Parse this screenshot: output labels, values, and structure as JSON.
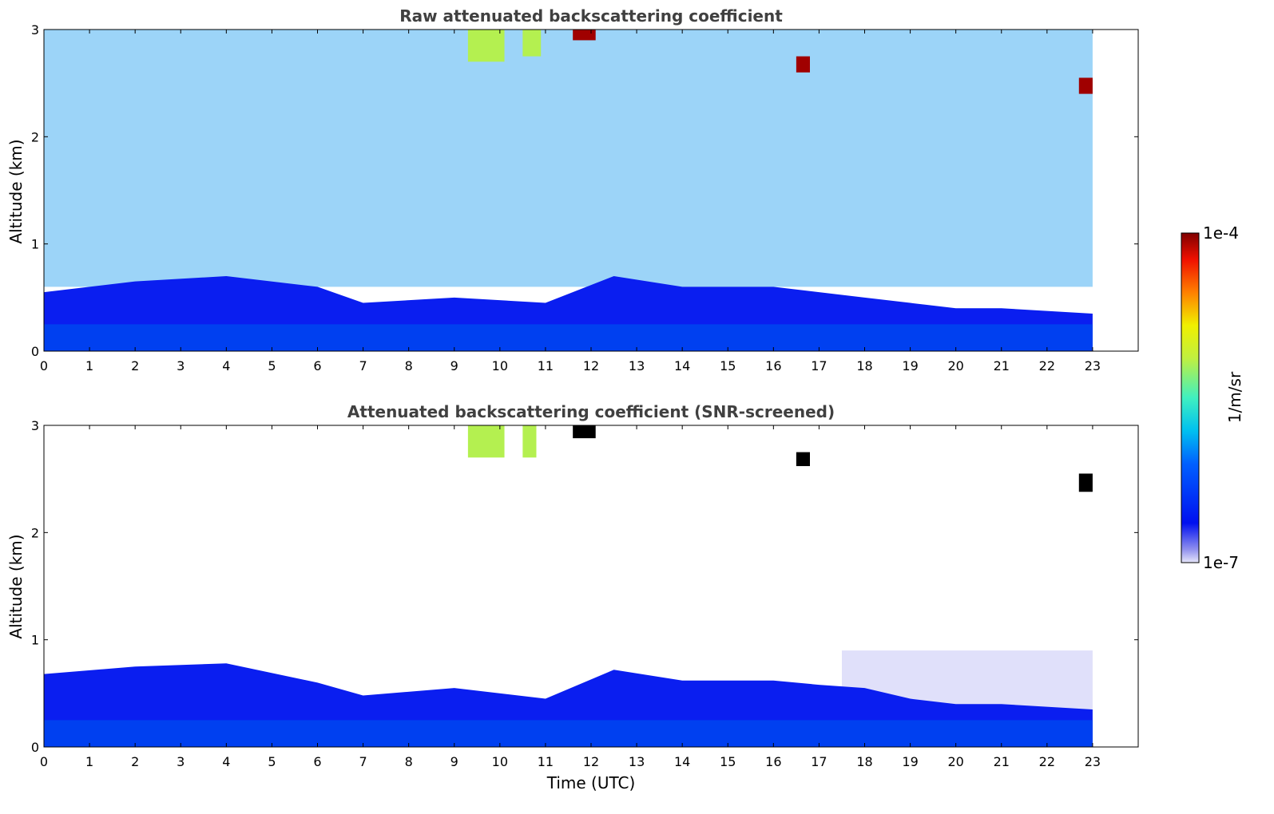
{
  "chart_data": [
    {
      "type": "heatmap",
      "title": "Raw attenuated backscattering coefficient",
      "xlabel": "",
      "ylabel": "Altitude (km)",
      "xlim": [
        0,
        24
      ],
      "ylim": [
        0,
        3
      ],
      "x_ticks": [
        "0",
        "1",
        "2",
        "3",
        "4",
        "5",
        "6",
        "7",
        "8",
        "9",
        "10",
        "11",
        "12",
        "13",
        "14",
        "15",
        "16",
        "17",
        "18",
        "19",
        "20",
        "21",
        "22",
        "23"
      ],
      "y_ticks": [
        "0",
        "1",
        "2",
        "3"
      ],
      "data_time_range_utc": [
        0,
        23
      ],
      "boundary_layer_top_km": [
        {
          "t": 0,
          "z": 0.55
        },
        {
          "t": 2,
          "z": 0.65
        },
        {
          "t": 4,
          "z": 0.7
        },
        {
          "t": 6,
          "z": 0.6
        },
        {
          "t": 7,
          "z": 0.45
        },
        {
          "t": 9,
          "z": 0.5
        },
        {
          "t": 11,
          "z": 0.45
        },
        {
          "t": 12.5,
          "z": 0.7
        },
        {
          "t": 14,
          "z": 0.6
        },
        {
          "t": 16,
          "z": 0.6
        },
        {
          "t": 17,
          "z": 0.55
        },
        {
          "t": 18,
          "z": 0.5
        },
        {
          "t": 19,
          "z": 0.45
        },
        {
          "t": 20,
          "z": 0.4
        },
        {
          "t": 21,
          "z": 0.4
        },
        {
          "t": 23,
          "z": 0.35
        }
      ],
      "features": [
        {
          "t0": 9.3,
          "t1": 10.1,
          "z0": 2.7,
          "z1": 3.0,
          "level": "high-mid"
        },
        {
          "t0": 10.5,
          "t1": 10.9,
          "z0": 2.75,
          "z1": 3.0,
          "level": "high-mid"
        },
        {
          "t0": 11.6,
          "t1": 12.1,
          "z0": 2.9,
          "z1": 3.0,
          "level": "max"
        },
        {
          "t0": 16.5,
          "t1": 16.8,
          "z0": 2.6,
          "z1": 2.75,
          "level": "max"
        },
        {
          "t0": 22.7,
          "t1": 23.0,
          "z0": 2.4,
          "z1": 2.55,
          "level": "max"
        }
      ]
    },
    {
      "type": "heatmap",
      "title": "Attenuated backscattering coefficient (SNR-screened)",
      "xlabel": "Time (UTC)",
      "ylabel": "Altitude (km)",
      "xlim": [
        0,
        24
      ],
      "ylim": [
        0,
        3
      ],
      "x_ticks": [
        "0",
        "1",
        "2",
        "3",
        "4",
        "5",
        "6",
        "7",
        "8",
        "9",
        "10",
        "11",
        "12",
        "13",
        "14",
        "15",
        "16",
        "17",
        "18",
        "19",
        "20",
        "21",
        "22",
        "23"
      ],
      "y_ticks": [
        "0",
        "1",
        "2",
        "3"
      ],
      "data_time_range_utc": [
        0,
        23
      ],
      "boundary_layer_top_km": [
        {
          "t": 0,
          "z": 0.68
        },
        {
          "t": 2,
          "z": 0.75
        },
        {
          "t": 4,
          "z": 0.78
        },
        {
          "t": 6,
          "z": 0.6
        },
        {
          "t": 7,
          "z": 0.48
        },
        {
          "t": 9,
          "z": 0.55
        },
        {
          "t": 11,
          "z": 0.45
        },
        {
          "t": 12.5,
          "z": 0.72
        },
        {
          "t": 14,
          "z": 0.62
        },
        {
          "t": 16,
          "z": 0.62
        },
        {
          "t": 17,
          "z": 0.58
        },
        {
          "t": 18,
          "z": 0.55
        },
        {
          "t": 19,
          "z": 0.45
        },
        {
          "t": 20,
          "z": 0.4
        },
        {
          "t": 21,
          "z": 0.4
        },
        {
          "t": 23,
          "z": 0.35
        }
      ],
      "features": [
        {
          "t0": 9.3,
          "t1": 10.1,
          "z0": 2.7,
          "z1": 3.0,
          "level": "high-mid"
        },
        {
          "t0": 10.5,
          "t1": 10.8,
          "z0": 2.7,
          "z1": 3.0,
          "level": "high-mid"
        },
        {
          "t0": 11.6,
          "t1": 12.1,
          "z0": 2.88,
          "z1": 3.0,
          "level": "masked"
        },
        {
          "t0": 16.5,
          "t1": 16.8,
          "z0": 2.62,
          "z1": 2.75,
          "level": "masked"
        },
        {
          "t0": 22.7,
          "t1": 23.0,
          "z0": 2.38,
          "z1": 2.55,
          "level": "masked"
        }
      ]
    }
  ],
  "colorbar": {
    "label": "1/m/sr",
    "max_label": "1e-4",
    "min_label": "1e-7",
    "scale": "log",
    "colormap": "jet"
  },
  "colors": {
    "background": "#ffffff",
    "low": "#e0e0fa",
    "mid_low": "#0a1ef0",
    "mid": "#23a0f0",
    "high_mid": "#b4f050",
    "max": "#a00000",
    "masked": "#000000"
  }
}
